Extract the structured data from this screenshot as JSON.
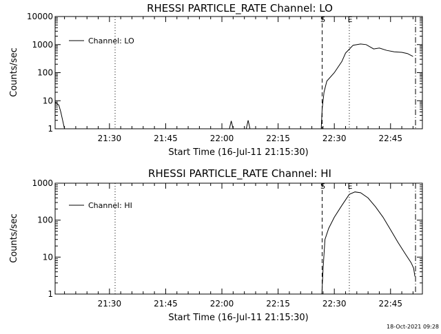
{
  "chart_data": [
    {
      "type": "line",
      "title": "RHESSI PARTICLE_RATE Channel: LO",
      "ylabel": "Counts/sec",
      "xlabel": "Start Time (16-Jul-11 21:15:30)",
      "yscale": "log",
      "ylim": [
        1,
        10000
      ],
      "yticks": [
        1,
        10,
        100,
        1000,
        10000
      ],
      "ytick_labels": [
        "1",
        "10",
        "100",
        "1000",
        "10000"
      ],
      "xlim": [
        "21:15:30",
        "22:53:30"
      ],
      "xticks": [
        "21:30",
        "21:45",
        "22:00",
        "22:15",
        "22:30",
        "22:45"
      ],
      "series": [
        {
          "name": "Channel: LO",
          "points": [
            [
              "21:15:30",
              9
            ],
            [
              "21:16:30",
              7
            ],
            [
              "21:17:00",
              4
            ],
            [
              "21:17:30",
              2
            ],
            [
              "21:18:00",
              1
            ],
            [
              "22:02:00",
              1
            ],
            [
              "22:02:30",
              1.9
            ],
            [
              "22:03:00",
              1
            ],
            [
              "22:06:30",
              1
            ],
            [
              "22:07:00",
              2.0
            ],
            [
              "22:07:30",
              1
            ],
            [
              "22:26:30",
              1
            ],
            [
              "22:26:45",
              5
            ],
            [
              "22:27:15",
              20
            ],
            [
              "22:28:00",
              50
            ],
            [
              "22:30:00",
              100
            ],
            [
              "22:32:00",
              250
            ],
            [
              "22:33:00",
              500
            ],
            [
              "22:35:00",
              950
            ],
            [
              "22:37:00",
              1050
            ],
            [
              "22:38:30",
              1000
            ],
            [
              "22:40:30",
              700
            ],
            [
              "22:42:00",
              750
            ],
            [
              "22:44:00",
              620
            ],
            [
              "22:46:00",
              550
            ],
            [
              "22:48:00",
              530
            ],
            [
              "22:49:30",
              480
            ],
            [
              "22:51:00",
              380
            ]
          ]
        }
      ],
      "markers": [
        {
          "time": "21:31:30",
          "style": "dotted",
          "label": ""
        },
        {
          "time": "22:26:45",
          "style": "dashed",
          "label": "S"
        },
        {
          "time": "22:34:00",
          "style": "dotted",
          "label": "E"
        },
        {
          "time": "22:51:40",
          "style": "dashdot",
          "label": ""
        }
      ]
    },
    {
      "type": "line",
      "title": "RHESSI PARTICLE_RATE Channel: HI",
      "ylabel": "Counts/sec",
      "xlabel": "Start Time (16-Jul-11 21:15:30)",
      "yscale": "log",
      "ylim": [
        1,
        1000
      ],
      "yticks": [
        1,
        10,
        100,
        1000
      ],
      "ytick_labels": [
        "1",
        "10",
        "100",
        "1000"
      ],
      "xlim": [
        "21:15:30",
        "22:53:30"
      ],
      "xticks": [
        "21:30",
        "21:45",
        "22:00",
        "22:15",
        "22:30",
        "22:45"
      ],
      "series": [
        {
          "name": "Channel: HI",
          "points": [
            [
              "22:26:40",
              1
            ],
            [
              "22:27:00",
              5
            ],
            [
              "22:27:30",
              30
            ],
            [
              "22:28:30",
              60
            ],
            [
              "22:30:00",
              120
            ],
            [
              "22:32:00",
              250
            ],
            [
              "22:34:00",
              500
            ],
            [
              "22:35:30",
              580
            ],
            [
              "22:37:00",
              550
            ],
            [
              "22:39:00",
              400
            ],
            [
              "22:41:00",
              230
            ],
            [
              "22:43:00",
              120
            ],
            [
              "22:45:00",
              55
            ],
            [
              "22:47:00",
              25
            ],
            [
              "22:49:00",
              12
            ],
            [
              "22:50:30",
              7
            ],
            [
              "22:51:10",
              5
            ],
            [
              "22:51:30",
              3
            ]
          ]
        }
      ],
      "markers": [
        {
          "time": "21:31:30",
          "style": "dotted",
          "label": ""
        },
        {
          "time": "22:26:45",
          "style": "dashed",
          "label": "S"
        },
        {
          "time": "22:34:00",
          "style": "dotted",
          "label": "E"
        },
        {
          "time": "22:51:40",
          "style": "dashdot",
          "label": ""
        }
      ]
    }
  ],
  "footer": {
    "timestamp": "18-Oct-2021 09:28"
  }
}
